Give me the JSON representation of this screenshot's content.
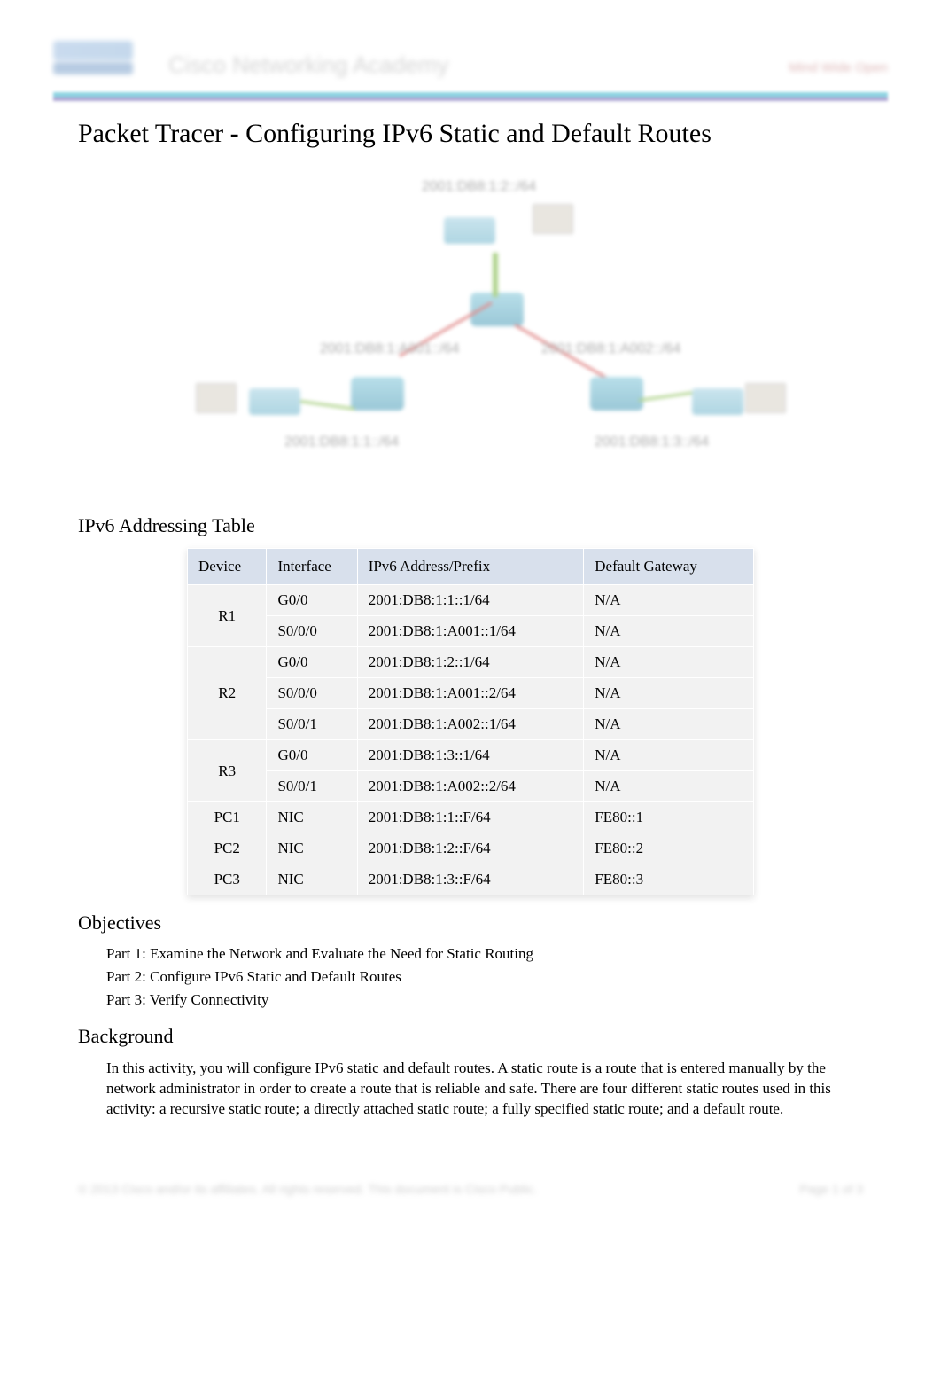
{
  "header": {
    "academy": "Cisco Networking Academy",
    "tagline": "Mind Wide Open"
  },
  "title": "Packet Tracer - Configuring IPv6 Static and Default Routes",
  "topology": {
    "labels": {
      "top_net": "2001:DB8:1:2::/64",
      "left_serial": "2001:DB8:1:A001::/64",
      "right_serial": "2001:DB8:1:A002::/64",
      "left_lan": "2001:DB8:1:1::/64",
      "right_lan": "2001:DB8:1:3::/64"
    }
  },
  "addr_table": {
    "caption": "IPv6 Addressing Table",
    "columns": [
      "Device",
      "Interface",
      "IPv6 Address/Prefix",
      "Default Gateway"
    ],
    "col_widths": [
      "14%",
      "16%",
      "40%",
      "30%"
    ],
    "header_bg": "#d8e0ec",
    "cell_bg": "#f2f2f2",
    "groups": [
      {
        "device": "R1",
        "rows": [
          {
            "iface": "G0/0",
            "addr": "2001:DB8:1:1::1/64",
            "gw": "N/A"
          },
          {
            "iface": "S0/0/0",
            "addr": "2001:DB8:1:A001::1/64",
            "gw": "N/A"
          }
        ]
      },
      {
        "device": "R2",
        "rows": [
          {
            "iface": "G0/0",
            "addr": "2001:DB8:1:2::1/64",
            "gw": "N/A"
          },
          {
            "iface": "S0/0/0",
            "addr": "2001:DB8:1:A001::2/64",
            "gw": "N/A"
          },
          {
            "iface": "S0/0/1",
            "addr": "2001:DB8:1:A002::1/64",
            "gw": "N/A"
          }
        ]
      },
      {
        "device": "R3",
        "rows": [
          {
            "iface": "G0/0",
            "addr": "2001:DB8:1:3::1/64",
            "gw": "N/A"
          },
          {
            "iface": "S0/0/1",
            "addr": "2001:DB8:1:A002::2/64",
            "gw": "N/A"
          }
        ]
      },
      {
        "device": "PC1",
        "rows": [
          {
            "iface": "NIC",
            "addr": "2001:DB8:1:1::F/64",
            "gw": "FE80::1"
          }
        ]
      },
      {
        "device": "PC2",
        "rows": [
          {
            "iface": "NIC",
            "addr": "2001:DB8:1:2::F/64",
            "gw": "FE80::2"
          }
        ]
      },
      {
        "device": "PC3",
        "rows": [
          {
            "iface": "NIC",
            "addr": "2001:DB8:1:3::F/64",
            "gw": "FE80::3"
          }
        ]
      }
    ]
  },
  "objectives": {
    "heading": "Objectives",
    "items": [
      "Part 1: Examine the Network and Evaluate the Need for Static Routing",
      "Part 2: Configure IPv6 Static and Default Routes",
      "Part 3: Verify Connectivity"
    ]
  },
  "background": {
    "heading": "Background",
    "text": "In this activity, you will configure IPv6 static and default routes. A static route is a route that is entered manually by the network administrator in order to create a route that is reliable and safe. There are four different static routes used in this activity: a recursive static route; a directly attached static route; a fully specified static route; and a default route."
  },
  "footer": {
    "left": "© 2013 Cisco and/or its affiliates. All rights reserved. This document is Cisco Public.",
    "right": "Page 1 of 3"
  }
}
